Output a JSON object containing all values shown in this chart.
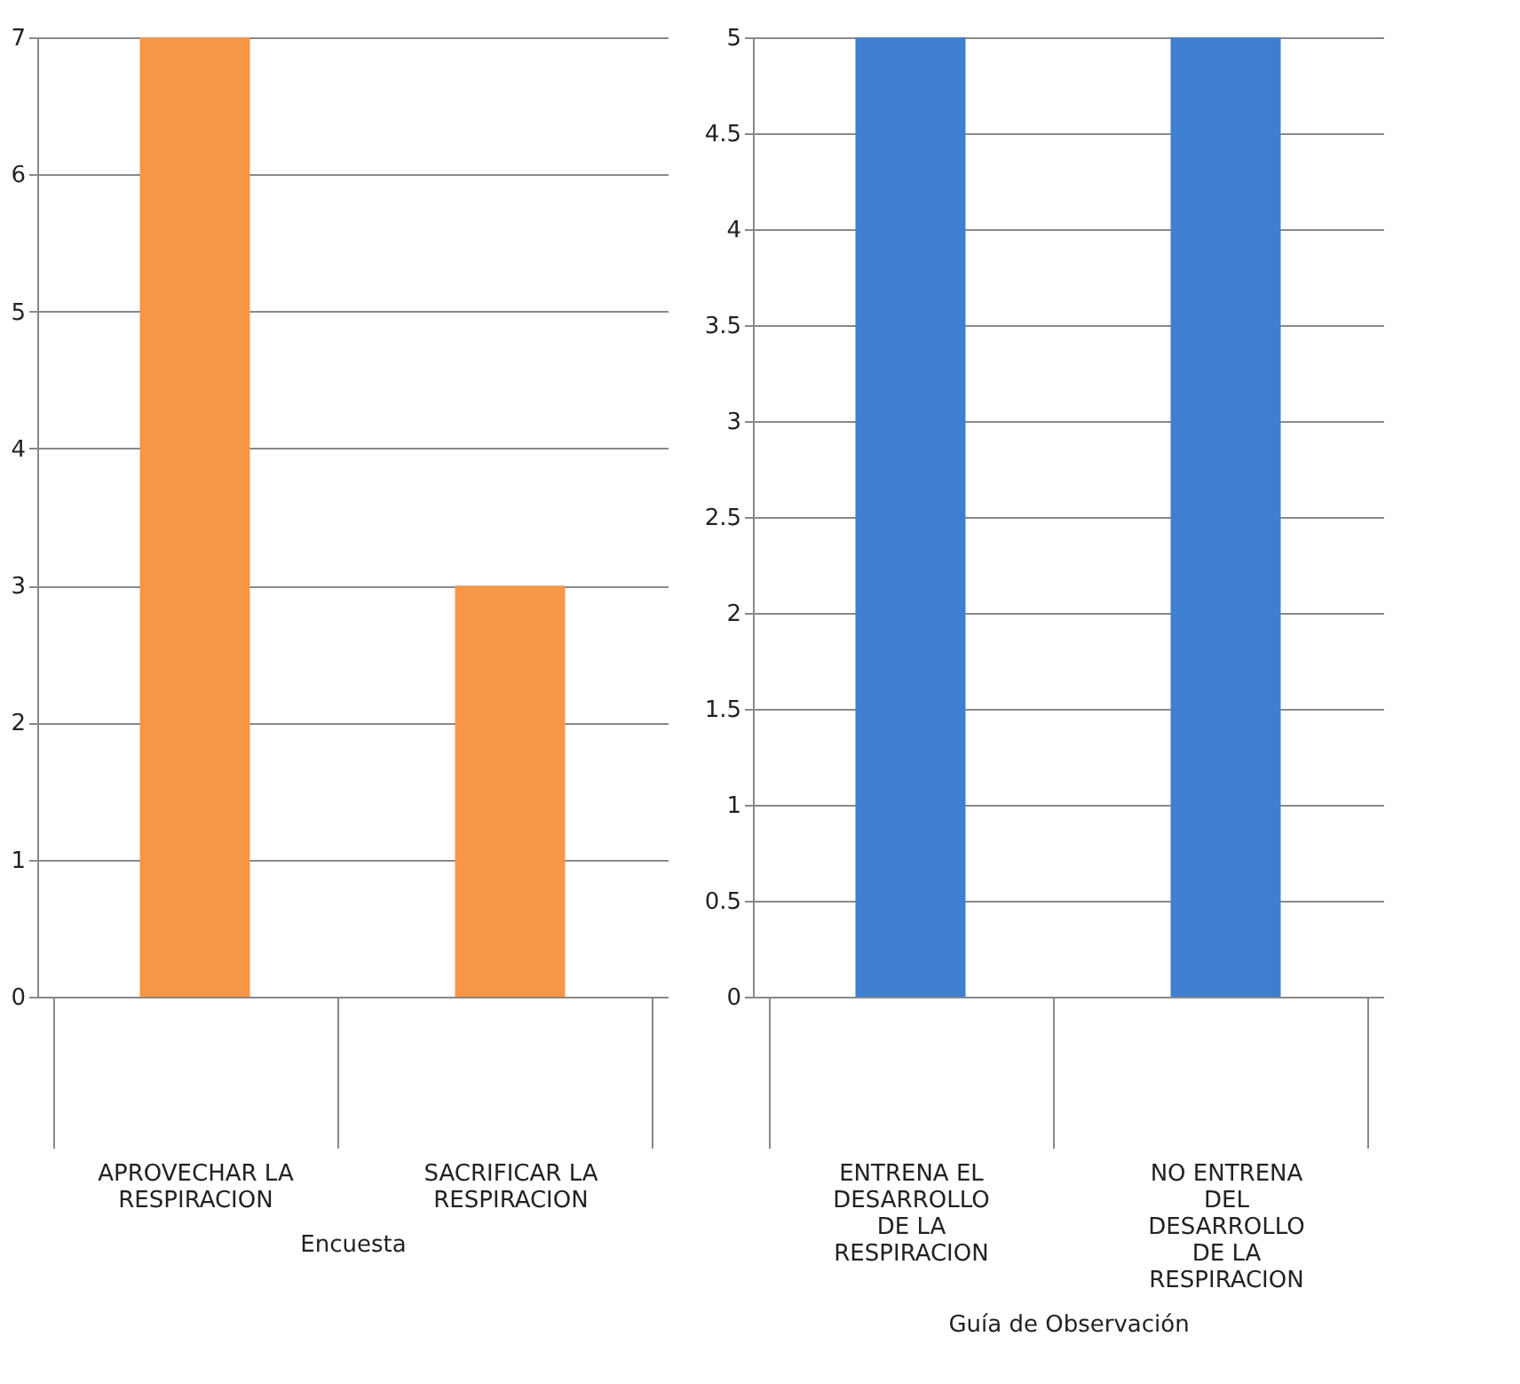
{
  "chart_data": [
    {
      "type": "bar",
      "xlabel": "Encuesta",
      "categories": [
        "APROVECHAR LA RESPIRACION",
        "SACRIFICAR LA RESPIRACION"
      ],
      "series": [
        {
          "color": "#f79646",
          "values": [
            7,
            3
          ]
        }
      ],
      "ylim": [
        0,
        7
      ],
      "yticks": [
        0,
        1,
        2,
        3,
        4,
        5,
        6,
        7
      ],
      "grid": "y"
    },
    {
      "type": "bar",
      "xlabel": "Guía de Observación",
      "categories": [
        "ENTRENA EL DESARROLLO DE LA RESPIRACION",
        "NO ENTRENA DEL DESARROLLO DE LA RESPIRACION"
      ],
      "series": [
        {
          "color": "#3f7fcf",
          "values": [
            5,
            5
          ]
        }
      ],
      "ylim": [
        0,
        5
      ],
      "yticks": [
        0,
        0.5,
        1,
        1.5,
        2,
        2.5,
        3,
        3.5,
        4,
        4.5,
        5
      ],
      "grid": "y"
    }
  ]
}
